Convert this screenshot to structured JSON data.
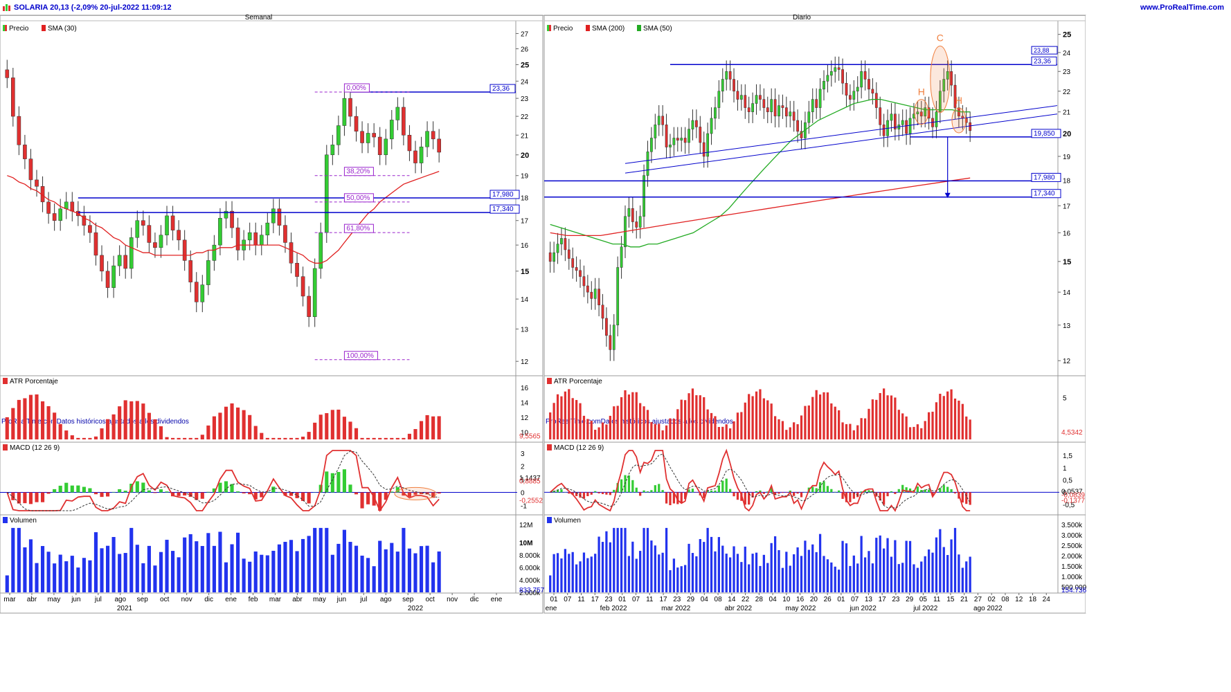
{
  "header": {
    "title": "SOLARIA 20,13 (-2,09% 20-jul-2022 11:09:12",
    "site": "www.ProRealTime.com"
  },
  "colors": {
    "up": "#33cc33",
    "down": "#e03030",
    "line_blue": "#0000cc",
    "sma_red": "#e02020",
    "sma_green": "#22aa22",
    "volume": "#2233ee",
    "fib": "#9922cc",
    "annotation": "#f08040"
  },
  "icons": [
    "chart-icon"
  ],
  "chart_data": [
    {
      "panel": "weekly",
      "type": "candlestick",
      "title": "Semanal",
      "legend": [
        "Precio",
        "SMA (30)"
      ],
      "source_text": "ProRealTime.comDatos históricos ajustados a los dividendos",
      "y_ticks": [
        "27",
        "26",
        "25",
        "24",
        "23",
        "22",
        "21",
        "20",
        "19",
        "18",
        "17",
        "16",
        "15",
        "14",
        "13",
        "12"
      ],
      "ylim": [
        11.8,
        27.3
      ],
      "x_labels": [
        "mar",
        "abr",
        "may",
        "jun",
        "jul",
        "ago",
        "sep",
        "oct",
        "nov",
        "dic",
        "ene",
        "feb",
        "mar",
        "abr",
        "may",
        "jun",
        "jul",
        "ago",
        "sep",
        "oct",
        "nov",
        "dic",
        "ene"
      ],
      "year_labels": [
        "2021",
        "2022"
      ],
      "horizontal_levels": [
        {
          "value": 23.36,
          "label": "23,36"
        },
        {
          "value": 17.98,
          "label": "17,980"
        },
        {
          "value": 17.34,
          "label": "17,340"
        }
      ],
      "fibonacci": [
        {
          "value": 23.36,
          "label": "0,00%"
        },
        {
          "value": 19.0,
          "label": "38,20%"
        },
        {
          "value": 17.8,
          "label": "50,00%"
        },
        {
          "value": 16.5,
          "label": "61,80%"
        },
        {
          "value": 12.05,
          "label": "100,00%"
        }
      ],
      "close_series": [
        24.2,
        22.0,
        20.5,
        19.8,
        18.8,
        18.5,
        17.8,
        17.3,
        17.0,
        17.5,
        17.8,
        17.4,
        17.2,
        16.8,
        16.5,
        15.6,
        15.0,
        14.4,
        15.2,
        15.6,
        15.1,
        16.3,
        17.0,
        16.8,
        16.1,
        15.9,
        16.4,
        17.2,
        16.6,
        16.2,
        15.4,
        14.6,
        13.9,
        14.5,
        15.4,
        16.0,
        17.1,
        17.4,
        16.7,
        15.8,
        16.2,
        16.5,
        16.0,
        16.4,
        16.9,
        17.5,
        16.8,
        16.1,
        15.3,
        14.8,
        14.1,
        13.4,
        15.1,
        16.5,
        20.0,
        20.5,
        21.5,
        23.0,
        22.0,
        21.2,
        20.6,
        21.1,
        20.9,
        20.0,
        20.8,
        21.8,
        22.5,
        21.0,
        20.2,
        19.6,
        20.4,
        21.2,
        20.8,
        20.13
      ],
      "sma30": [
        19.0,
        18.9,
        18.7,
        18.6,
        18.4,
        18.3,
        18.1,
        17.9,
        17.8,
        17.6,
        17.5,
        17.4,
        17.3,
        17.1,
        17.0,
        16.8,
        16.7,
        16.5,
        16.3,
        16.2,
        16.0,
        15.9,
        15.8,
        15.7,
        15.7,
        15.6,
        15.6,
        15.6,
        15.6,
        15.6,
        15.6,
        15.6,
        15.7,
        15.7,
        15.8,
        15.8,
        15.9,
        15.9,
        15.9,
        16.0,
        16.0,
        16.0,
        16.0,
        16.0,
        16.0,
        16.0,
        16.0,
        15.9,
        15.8,
        15.7,
        15.6,
        15.4,
        15.3,
        15.3,
        15.4,
        15.6,
        15.8,
        16.1,
        16.4,
        16.7,
        17.0,
        17.3,
        17.5,
        17.8,
        18.0,
        18.2,
        18.4,
        18.6,
        18.7,
        18.8,
        18.9,
        19.0,
        19.1,
        19.2
      ],
      "atr": {
        "title": "ATR Porcentaje",
        "last_label": "9,5565",
        "y_ticks": [
          "16",
          "14",
          "12",
          "10"
        ],
        "ylim": [
          9,
          16.3
        ]
      },
      "macd": {
        "title": "MACD (12 26 9)",
        "y_ticks": [
          "3",
          "2",
          "1",
          "0",
          "-1"
        ],
        "ylim": [
          -1.4,
          3.2
        ],
        "labels": [
          "1,1437",
          "0,8885",
          "-0,2552"
        ]
      },
      "volume": {
        "title": "Volumen",
        "y_ticks": [
          "12M",
          "10M",
          "8.000k",
          "6.000k",
          "4.000k",
          "2.000k"
        ],
        "ylim": [
          0,
          12.5
        ],
        "last_label": "833.757"
      }
    },
    {
      "panel": "daily",
      "type": "candlestick",
      "title": "Diario",
      "legend": [
        "Precio",
        "SMA (200)",
        "SMA (50)"
      ],
      "source_text": "ProRealTime.comDatos históricos ajustados a los dividendos",
      "y_ticks": [
        "25",
        "24",
        "23",
        "22",
        "21",
        "20",
        "19",
        "18",
        "17",
        "16",
        "15",
        "14",
        "13",
        "12"
      ],
      "ylim": [
        11.8,
        25.3
      ],
      "x_labels": [
        "01",
        "07",
        "11",
        "17",
        "23",
        "01",
        "07",
        "11",
        "17",
        "23",
        "29",
        "04",
        "08",
        "14",
        "22",
        "28",
        "04",
        "10",
        "16",
        "20",
        "26",
        "01",
        "07",
        "13",
        "17",
        "23",
        "29",
        "05",
        "11",
        "15",
        "21",
        "27",
        "02",
        "08",
        "12",
        "18",
        "24"
      ],
      "month_labels": [
        "ene",
        "feb 2022",
        "mar 2022",
        "abr 2022",
        "may 2022",
        "jun 2022",
        "jul 2022",
        "ago 2022"
      ],
      "horizontal_levels": [
        {
          "value": 23.36,
          "label": "23,36"
        },
        {
          "value": 19.85,
          "label": "19,850"
        },
        {
          "value": 17.98,
          "label": "17,980"
        },
        {
          "value": 17.34,
          "label": "17,340"
        }
      ],
      "hidden_level_label": "23,88",
      "annotations": [
        "H",
        "C",
        "H"
      ],
      "close_series": [
        15.0,
        15.3,
        15.6,
        15.8,
        15.4,
        15.1,
        14.8,
        14.7,
        14.5,
        14.2,
        14.0,
        13.8,
        14.1,
        13.6,
        13.2,
        12.7,
        12.3,
        13.0,
        14.8,
        15.5,
        16.6,
        16.9,
        16.4,
        16.2,
        16.6,
        18.2,
        19.2,
        19.8,
        20.4,
        20.8,
        20.4,
        19.4,
        19.5,
        19.8,
        19.7,
        19.8,
        19.6,
        20.2,
        20.6,
        20.3,
        19.6,
        19.0,
        20.0,
        20.7,
        21.2,
        22.0,
        22.6,
        23.0,
        22.6,
        22.0,
        21.6,
        21.8,
        21.2,
        21.0,
        21.4,
        21.8,
        21.6,
        21.2,
        21.0,
        21.6,
        20.8,
        21.3,
        21.2,
        20.8,
        21.0,
        20.6,
        20.1,
        19.8,
        20.5,
        21.0,
        21.6,
        21.2,
        22.1,
        22.5,
        22.8,
        23.0,
        23.2,
        23.1,
        22.4,
        21.8,
        21.6,
        22.0,
        22.2,
        23.0,
        22.6,
        22.1,
        21.9,
        21.2,
        20.4,
        19.9,
        20.6,
        20.9,
        20.2,
        20.4,
        20.6,
        20.0,
        20.7,
        20.9,
        21.0,
        20.8,
        21.2,
        20.7,
        20.3,
        21.0,
        22.0,
        22.6,
        23.0,
        22.3,
        21.2,
        20.8,
        20.7,
        20.5,
        20.13
      ],
      "sma50": [
        16.3,
        16.2,
        16.1,
        16.0,
        15.9,
        15.8,
        15.7,
        15.6,
        15.6,
        15.5,
        15.5,
        15.6,
        15.6,
        15.7,
        15.8,
        15.9,
        16.0,
        16.2,
        16.4,
        16.6,
        16.9,
        17.3,
        17.7,
        18.1,
        18.5,
        18.9,
        19.3,
        19.7,
        20.0,
        20.3,
        20.6,
        20.8,
        21.0,
        21.2,
        21.4,
        21.5,
        21.6,
        21.6,
        21.5,
        21.4,
        21.3,
        21.2,
        21.1,
        21.1,
        21.1,
        21.1,
        21.0,
        21.0
      ],
      "sma200": [
        16.0,
        15.9,
        15.9,
        15.9,
        16.0,
        16.1,
        16.2,
        16.3,
        16.4,
        16.5,
        16.6,
        16.7,
        16.8,
        16.9,
        17.0,
        17.1,
        17.2,
        17.3,
        17.4,
        17.5,
        17.6,
        17.7,
        17.8,
        17.9,
        18.0,
        18.1
      ],
      "atr": {
        "title": "ATR Porcentaje",
        "last_label": "4,5342",
        "y_ticks": [
          "5"
        ],
        "ylim": [
          2.2,
          5.8
        ]
      },
      "macd": {
        "title": "MACD (12 26 9)",
        "y_ticks": [
          "1,5",
          "1",
          "0,5",
          "0",
          "-0,5"
        ],
        "ylim": [
          -0.75,
          1.7
        ],
        "labels": [
          "0,0537",
          "-0,0839",
          "-0,1377"
        ]
      },
      "volume": {
        "title": "Volumen",
        "y_ticks": [
          "3.500k",
          "3.000k",
          "2.500k",
          "2.000k",
          "1.500k",
          "1.000k",
          "500.000"
        ],
        "ylim": [
          0,
          3.6
        ],
        "last_label": "154.736"
      }
    }
  ]
}
